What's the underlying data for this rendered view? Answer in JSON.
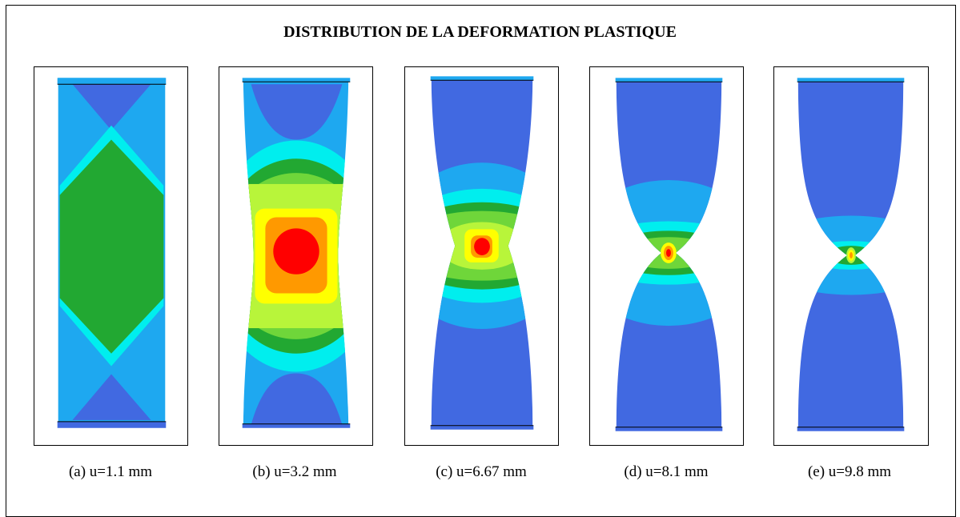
{
  "title": "DISTRIBUTION DE LA DEFORMATION PLASTIQUE",
  "colors": {
    "blue": "#4169E1",
    "lightblue": "#1EA8F0",
    "cyan": "#00EEEE",
    "darkgreen": "#22A832",
    "green": "#6FD63A",
    "yellowgreen": "#B8F53A",
    "yellow": "#FFFF00",
    "orange": "#FF9900",
    "red": "#FF0000"
  },
  "panels": [
    {
      "caption": "(a) u=1.1 mm"
    },
    {
      "caption": "(b) u=3.2 mm"
    },
    {
      "caption": "(c) u=6.67 mm"
    },
    {
      "caption": "(d) u=8.1 mm"
    },
    {
      "caption": "(e) u=9.8 mm"
    }
  ]
}
